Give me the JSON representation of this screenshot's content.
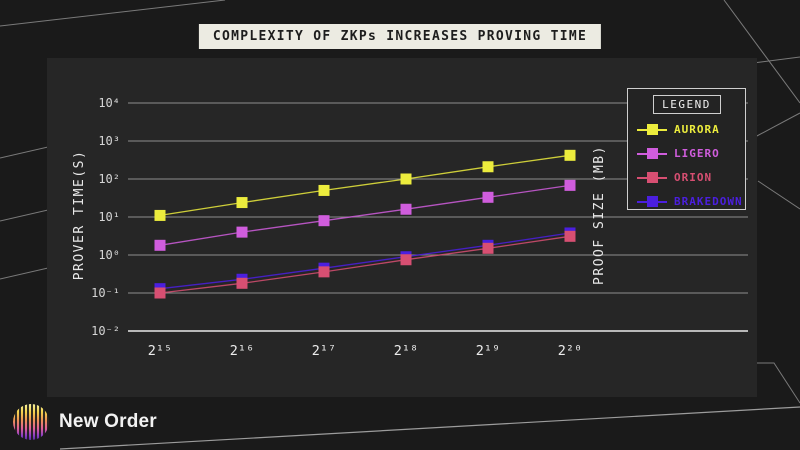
{
  "branding": {
    "name": "New Order"
  },
  "legend": {
    "title": "LEGEND"
  },
  "chart_data": {
    "type": "line",
    "title": "COMPLEXITY OF ZKPs INCREASES PROVING TIME",
    "x_axis": {
      "tick_labels": [
        "2¹⁵",
        "2¹⁶",
        "2¹⁷",
        "2¹⁸",
        "2¹⁹",
        "2²⁰"
      ],
      "values_log2": [
        15,
        16,
        17,
        18,
        19,
        20
      ]
    },
    "y_axis": {
      "scale": "log",
      "tick_labels": [
        "10⁴",
        "10³",
        "10²",
        "10¹",
        "10⁰",
        "10⁻¹",
        "10⁻²"
      ],
      "tick_exponents": [
        4,
        3,
        2,
        1,
        0,
        -1,
        -2
      ],
      "ylim_exponents": [
        -2,
        4
      ],
      "label_left": "PROVER TIME(S)",
      "label_right": "PROOF SIZE (MB)"
    },
    "grid": true,
    "legend_position": "upper right",
    "series": [
      {
        "name": "AURORA",
        "color": "#ecec3d",
        "z": 1,
        "values": [
          11,
          24,
          50,
          100,
          210,
          420
        ]
      },
      {
        "name": "LIGERO",
        "color": "#d05ddd",
        "z": 2,
        "values": [
          1.8,
          4,
          8,
          16,
          33,
          68
        ]
      },
      {
        "name": "ORION",
        "color": "#d74f72",
        "z": 4,
        "values": [
          0.1,
          0.18,
          0.36,
          0.75,
          1.5,
          3.1
        ]
      },
      {
        "name": "BRAKEDOWN",
        "color": "#4b1fdf",
        "z": 3,
        "values": [
          0.13,
          0.23,
          0.45,
          0.9,
          1.8,
          3.8
        ]
      }
    ]
  }
}
